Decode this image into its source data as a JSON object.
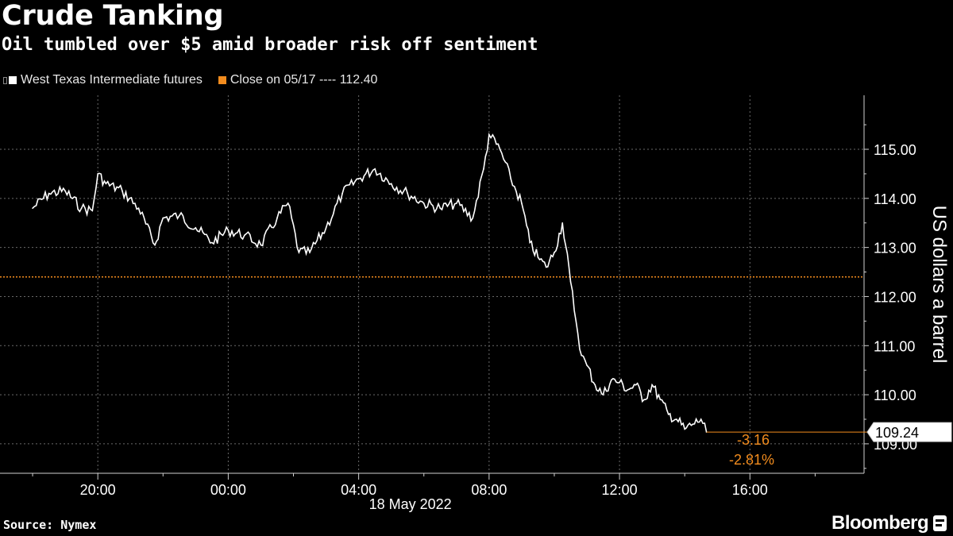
{
  "title": "Crude Tanking",
  "subtitle": "Oil tumbled over $5 amid broader risk off sentiment",
  "source": "Source: Nymex",
  "brand": "Bloomberg",
  "legend": {
    "series_label": "West Texas Intermediate futures",
    "close_label": "Close on 05/17 ---- 112.40"
  },
  "colors": {
    "series": "#ffffff",
    "close": "#f28c1e",
    "grid": "#6a6a6a",
    "background": "#000000"
  },
  "chart_data": {
    "type": "line",
    "ylabel": "US dollars a barrel",
    "date_label": "18 May 2022",
    "ylim": [
      108.4,
      116.1
    ],
    "xlim": [
      "17:00",
      "19:30"
    ],
    "y_ticks": [
      "109.00",
      "110.00",
      "111.00",
      "112.00",
      "113.00",
      "114.00",
      "115.00"
    ],
    "x_ticks": [
      "20:00",
      "00:00",
      "04:00",
      "08:00",
      "12:00",
      "16:00"
    ],
    "gridlines": true,
    "reference_line": {
      "label": "Close on 05/17",
      "value": 112.4
    },
    "last_value": {
      "value": 109.24,
      "label": "109.24",
      "change": "-3.16",
      "change_pct": "-2.81%"
    },
    "series": [
      {
        "name": "West Texas Intermediate futures",
        "x": [
          "18:00",
          "18:30",
          "19:00",
          "19:30",
          "19:50",
          "20:00",
          "20:15",
          "20:45",
          "21:15",
          "21:45",
          "22:00",
          "22:30",
          "23:00",
          "23:30",
          "00:00",
          "00:30",
          "01:00",
          "01:30",
          "01:50",
          "02:10",
          "02:30",
          "03:00",
          "03:30",
          "04:00",
          "04:30",
          "05:00",
          "05:30",
          "06:00",
          "06:30",
          "07:00",
          "07:30",
          "07:50",
          "08:00",
          "08:20",
          "08:40",
          "09:00",
          "09:15",
          "09:30",
          "09:45",
          "10:00",
          "10:15",
          "10:30",
          "10:40",
          "10:50",
          "11:00",
          "11:15",
          "11:30",
          "11:45",
          "12:00",
          "12:15",
          "12:30",
          "12:45",
          "13:00",
          "13:15",
          "13:30",
          "13:45",
          "14:00",
          "14:15",
          "14:30",
          "14:40"
        ],
        "values": [
          113.8,
          114.1,
          114.15,
          113.8,
          113.75,
          114.5,
          114.3,
          114.15,
          113.8,
          113.05,
          113.6,
          113.65,
          113.4,
          113.1,
          113.35,
          113.25,
          113.05,
          113.6,
          113.9,
          112.9,
          112.9,
          113.4,
          114.1,
          114.4,
          114.6,
          114.3,
          114.1,
          113.9,
          113.8,
          113.9,
          113.6,
          114.6,
          115.3,
          115.0,
          114.4,
          113.9,
          113.1,
          112.8,
          112.6,
          112.9,
          113.5,
          112.3,
          111.5,
          110.8,
          110.6,
          110.2,
          110.0,
          110.3,
          110.25,
          110.1,
          110.2,
          109.9,
          110.2,
          109.9,
          109.6,
          109.5,
          109.3,
          109.4,
          109.5,
          109.24
        ]
      }
    ]
  }
}
